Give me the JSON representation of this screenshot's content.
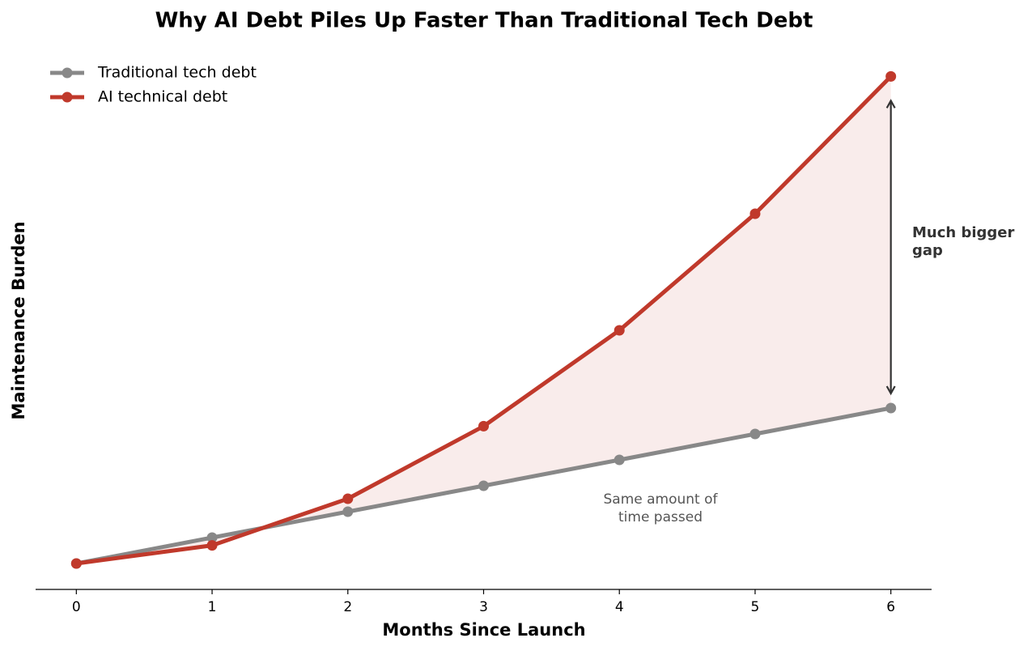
{
  "chart_data": {
    "type": "line",
    "title": "Why AI Debt Piles Up Faster Than Traditional Tech Debt",
    "x_label": "Months Since Launch",
    "y_label": "Maintenance Burden",
    "x": [
      0,
      1,
      2,
      3,
      4,
      5,
      6
    ],
    "series": [
      {
        "name": "Traditional tech debt",
        "color": "#888888",
        "values": [
          1,
          2,
          3,
          4,
          5,
          6,
          7
        ]
      },
      {
        "name": "AI technical debt",
        "color": "#c0392b",
        "values": [
          1,
          1.7,
          3.5,
          6.3,
          10,
          14.5,
          19.8
        ]
      }
    ],
    "xlim": [
      -0.3,
      6.3
    ],
    "xticks": [
      0,
      1,
      2,
      3,
      4,
      5,
      6
    ],
    "ylim": [
      0,
      21
    ],
    "legend": "upper left",
    "fill_color": "#f9eceb",
    "annotations": [
      {
        "lines": [
          "Much bigger",
          "gap"
        ]
      },
      {
        "lines": [
          "Same amount of",
          "time passed"
        ]
      }
    ]
  }
}
